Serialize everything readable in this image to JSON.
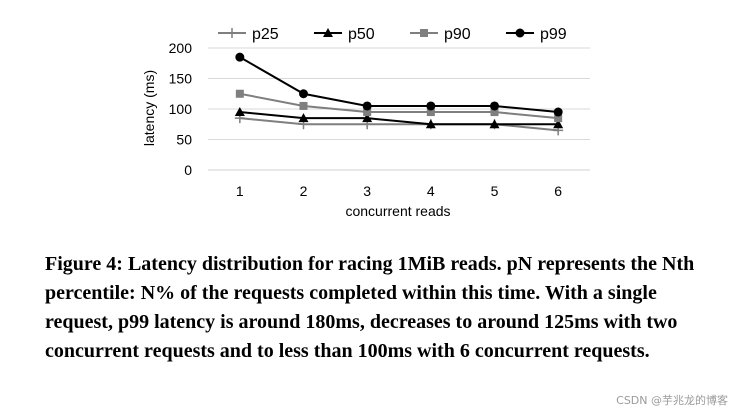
{
  "chart_data": {
    "type": "line",
    "x": [
      1,
      2,
      3,
      4,
      5,
      6
    ],
    "series": [
      {
        "name": "p25",
        "values": [
          85,
          75,
          75,
          75,
          75,
          65
        ],
        "color": "#7f7f7f",
        "marker": "plus"
      },
      {
        "name": "p50",
        "values": [
          95,
          85,
          85,
          75,
          75,
          75
        ],
        "color": "#000000",
        "marker": "triangle"
      },
      {
        "name": "p90",
        "values": [
          125,
          105,
          95,
          95,
          95,
          85
        ],
        "color": "#7f7f7f",
        "marker": "square"
      },
      {
        "name": "p99",
        "values": [
          185,
          125,
          105,
          105,
          105,
          95
        ],
        "color": "#000000",
        "marker": "circle"
      }
    ],
    "xlabel": "concurrent reads",
    "ylabel": "latency (ms)",
    "ylim": [
      0,
      200
    ],
    "yticks": [
      0,
      50,
      100,
      150,
      200
    ],
    "grid": "horizontal",
    "legend": "top"
  },
  "caption": "Figure 4: Latency distribution for racing 1MiB reads. pN represents the Nth percentile: N% of the requests completed within this time. With a single request, p99 latency is around 180ms, decreases to around 125ms with two concurrent requests and to less than 100ms with 6 concurrent requests.",
  "watermark": "CSDN @芋兆龙的博客"
}
